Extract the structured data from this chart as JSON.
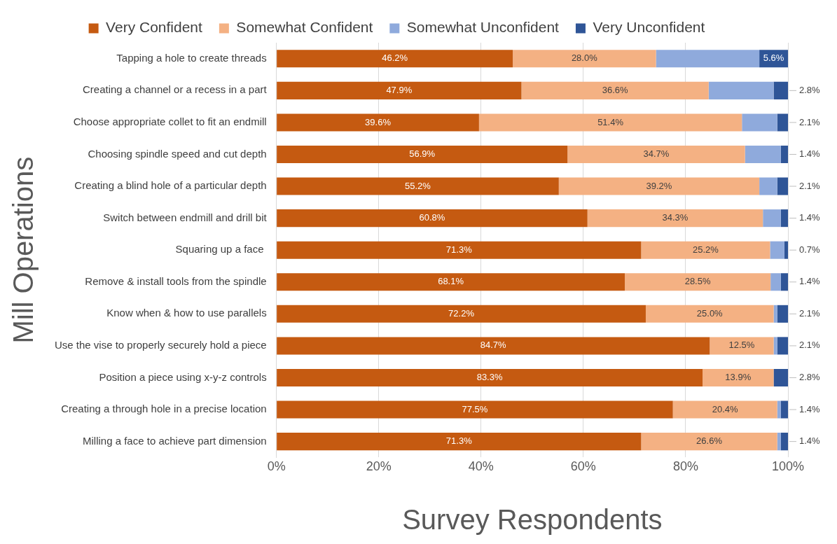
{
  "chart_data": {
    "type": "bar",
    "orientation": "horizontal",
    "stacked": true,
    "xlabel": "Survey Respondents",
    "ylabel": "Mill Operations",
    "categories": [
      "Tapping a hole to create threads",
      "Creating a channel or a recess in a part",
      "Choose appropriate collet to fit an endmill",
      "Choosing spindle speed and cut depth",
      "Creating a blind hole of a particular depth",
      "Switch between endmill and drill bit",
      "Squaring up a face ",
      "Remove & install tools from the spindle",
      "Know when & how to use parallels",
      "Use the vise to properly securely hold a piece",
      "Position a piece using x-y-z controls",
      "Creating a through hole in a precise location",
      "Milling a face to achieve part dimension"
    ],
    "series": [
      {
        "name": "Very Confident",
        "color": "#c55a11",
        "values": [
          46.2,
          47.9,
          39.6,
          56.9,
          55.2,
          60.8,
          71.3,
          68.1,
          72.2,
          84.7,
          83.3,
          77.5,
          71.3
        ],
        "value_labels": [
          "46.2%",
          "47.9%",
          "39.6%",
          "56.9%",
          "55.2%",
          "60.8%",
          "71.3%",
          "68.1%",
          "72.2%",
          "84.7%",
          "83.3%",
          "77.5%",
          "71.3%"
        ]
      },
      {
        "name": "Somewhat Confident",
        "color": "#f4b183",
        "values": [
          28.0,
          36.6,
          51.4,
          34.7,
          39.2,
          34.3,
          25.2,
          28.5,
          25.0,
          12.5,
          13.9,
          20.4,
          26.6
        ],
        "value_labels": [
          "28.0%",
          "36.6%",
          "51.4%",
          "34.7%",
          "39.2%",
          "34.3%",
          "25.2%",
          "28.5%",
          "25.0%",
          "12.5%",
          "13.9%",
          "20.4%",
          "26.6%"
        ]
      },
      {
        "name": "Somewhat Unconfident",
        "color": "#8faadc",
        "values": [
          20.2,
          12.7,
          6.9,
          7.0,
          3.5,
          3.5,
          2.8,
          2.0,
          0.7,
          0.7,
          0,
          0.7,
          0.7
        ]
      },
      {
        "name": "Very Unconfident",
        "color": "#2f5597",
        "values": [
          5.6,
          2.8,
          2.1,
          1.4,
          2.1,
          1.4,
          0.7,
          1.4,
          2.1,
          2.1,
          2.8,
          1.4,
          1.4
        ],
        "value_labels": [
          "5.6%",
          "2.8%",
          "2.1%",
          "1.4%",
          "2.1%",
          "1.4%",
          "0.7%",
          "1.4%",
          "2.1%",
          "2.1%",
          "2.8%",
          "1.4%",
          "1.4%"
        ]
      }
    ],
    "xlim": [
      0,
      100
    ],
    "xticks": [
      {
        "value": 0,
        "label": "0%"
      },
      {
        "value": 20,
        "label": "20%"
      },
      {
        "value": 40,
        "label": "40%"
      },
      {
        "value": 60,
        "label": "60%"
      },
      {
        "value": 80,
        "label": "80%"
      },
      {
        "value": 100,
        "label": "100%"
      }
    ],
    "grid": "x",
    "legend": "top"
  }
}
